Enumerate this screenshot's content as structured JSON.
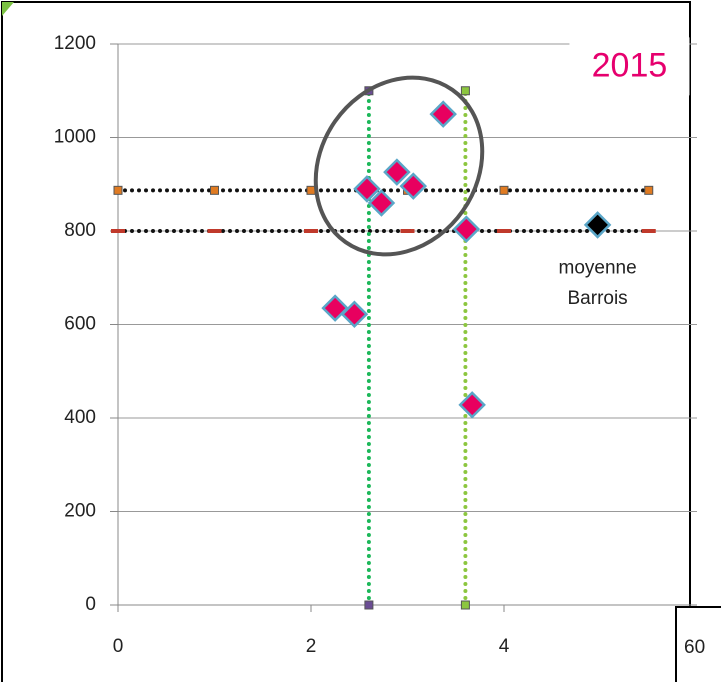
{
  "chart_data": {
    "type": "scatter",
    "xlim": [
      0,
      6
    ],
    "xticks": [
      0,
      2,
      4
    ],
    "ylim": [
      0,
      1200
    ],
    "yticks": [
      0,
      200,
      400,
      600,
      800,
      1000,
      1200
    ],
    "grid": true,
    "annotations": [
      {
        "text": "2015",
        "x": 5.3,
        "y": 1150,
        "color": "#e6006e"
      },
      {
        "text": "moyenne",
        "x": 4.97,
        "y": 720,
        "color": "#222"
      },
      {
        "text": "Barrois",
        "x": 4.97,
        "y": 655,
        "color": "#222"
      }
    ],
    "corner_label": "60",
    "series": [
      {
        "x": [
          0,
          1,
          2,
          3,
          4,
          5.5
        ],
        "values": [
          887,
          887,
          887,
          887,
          887,
          887
        ],
        "color": "#111",
        "marker": "square",
        "marker_color": "#e07b22",
        "line": "dotted"
      },
      {
        "x": [
          0,
          1,
          2,
          3,
          4,
          5.5
        ],
        "values": [
          800,
          800,
          800,
          800,
          800,
          800
        ],
        "color": "#111",
        "marker": "dash",
        "marker_color": "#c0392b",
        "line": "dotted"
      },
      {
        "x": [
          2.6,
          2.6
        ],
        "values": [
          0,
          1100
        ],
        "color": "#1db85a",
        "marker": "square",
        "marker_color": "#6a4c93",
        "line": "dotted"
      },
      {
        "x": [
          3.6,
          3.6
        ],
        "values": [
          0,
          1100
        ],
        "color": "#8cc63f",
        "marker": "square",
        "marker_color": "#8cc63f",
        "line": "dotted"
      },
      {
        "x": [
          2.25,
          2.45,
          2.58,
          2.73,
          2.89,
          3.06,
          3.37,
          3.61,
          3.67
        ],
        "values": [
          635,
          622,
          890,
          860,
          926,
          896,
          1050,
          804,
          428
        ],
        "color": "#e8005f",
        "marker": "diamond",
        "marker_color": "#e8005f",
        "line": null
      },
      {
        "x": [
          4.97
        ],
        "values": [
          813
        ],
        "color": "#000",
        "marker": "diamond",
        "marker_color": "#000",
        "line": null
      }
    ]
  }
}
